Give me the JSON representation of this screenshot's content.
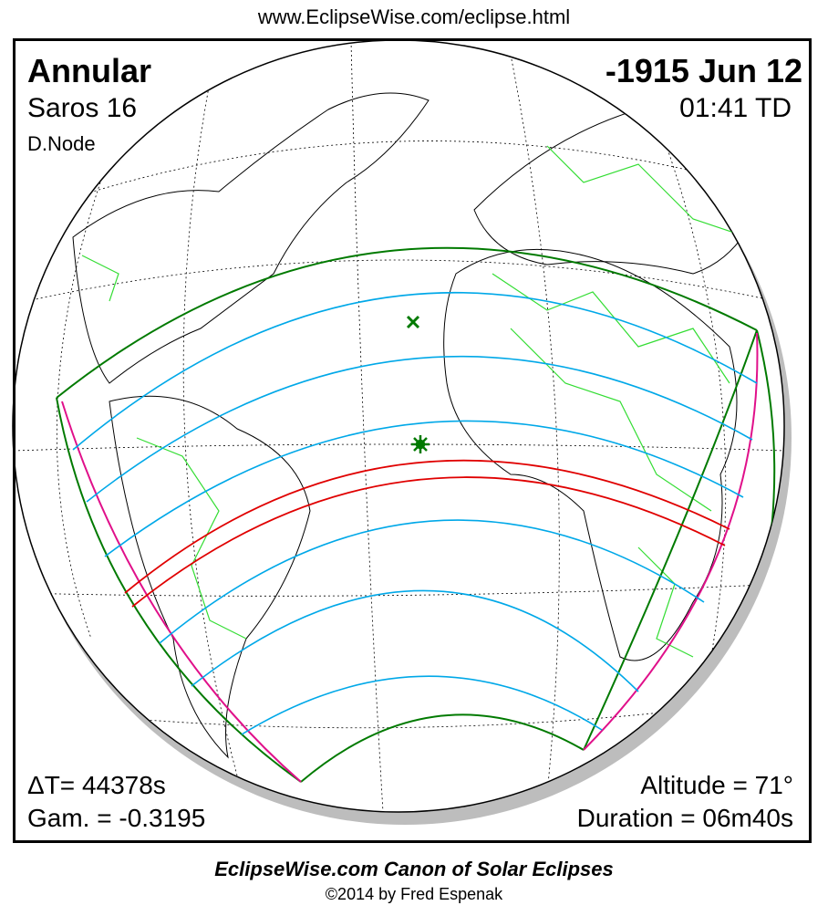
{
  "header": {
    "url": "www.EclipseWise.com/eclipse.html"
  },
  "eclipse": {
    "type": "Annular",
    "saros": "Saros  16",
    "node": "D.Node",
    "date": "-1915 Jun 12",
    "time": "01:41 TD",
    "delta_t": "ΔT=  44378s",
    "gamma": "Gam. = -0.3195",
    "altitude": "Altitude = 71°",
    "duration": "Duration = 06m40s"
  },
  "footer": {
    "title": "EclipseWise.com Canon of Solar Eclipses",
    "credit": "©2014 by Fred Espenak"
  },
  "colors": {
    "penumbra_limit": "#007a00",
    "rise_set": "#e0108a",
    "magnitude": "#00a8e8",
    "central_path": "#e00000",
    "borders": "#33dd33"
  }
}
